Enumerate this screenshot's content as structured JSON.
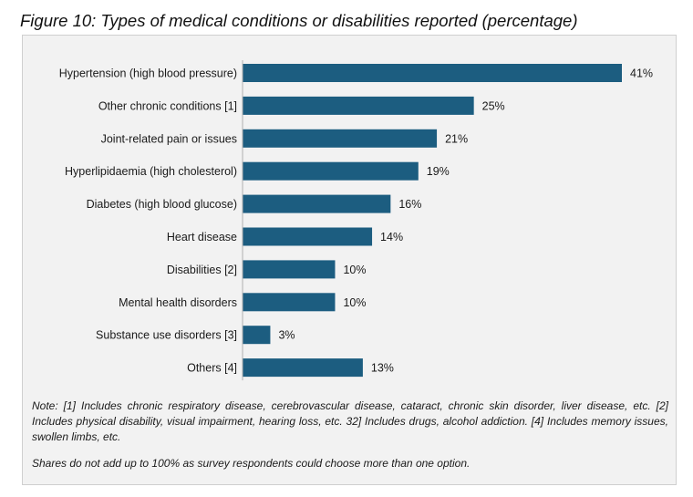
{
  "figure_title": "Figure 10: Types of medical conditions or disabilities reported (percentage)",
  "chart_data": {
    "type": "bar",
    "orientation": "horizontal",
    "categories": [
      "Hypertension (high blood pressure)",
      "Other chronic conditions [1]",
      "Joint-related pain or issues",
      "Hyperlipidaemia (high cholesterol)",
      "Diabetes (high blood glucose)",
      "Heart disease",
      "Disabilities [2]",
      "Mental health disorders",
      "Substance use disorders [3]",
      "Others [4]"
    ],
    "values": [
      41,
      25,
      21,
      19,
      16,
      14,
      10,
      10,
      3,
      13
    ],
    "value_labels": [
      "41%",
      "25%",
      "21%",
      "19%",
      "16%",
      "14%",
      "10%",
      "10%",
      "3%",
      "13%"
    ],
    "unit": "%",
    "xlim": [
      0,
      41
    ],
    "grid": false,
    "legend": "none",
    "bar_color": "#1c5d80"
  },
  "notes": {
    "note_text": "Note: [1] Includes chronic respiratory disease, cerebrovascular disease, cataract, chronic skin disorder, liver disease, etc. [2] Includes physical disability, visual impairment, hearing loss, etc. 32] Includes drugs, alcohol addiction. [4] Includes memory issues, swollen limbs,  etc.",
    "share_text": "Shares do not add up to 100% as survey respondents could choose more than one option."
  }
}
